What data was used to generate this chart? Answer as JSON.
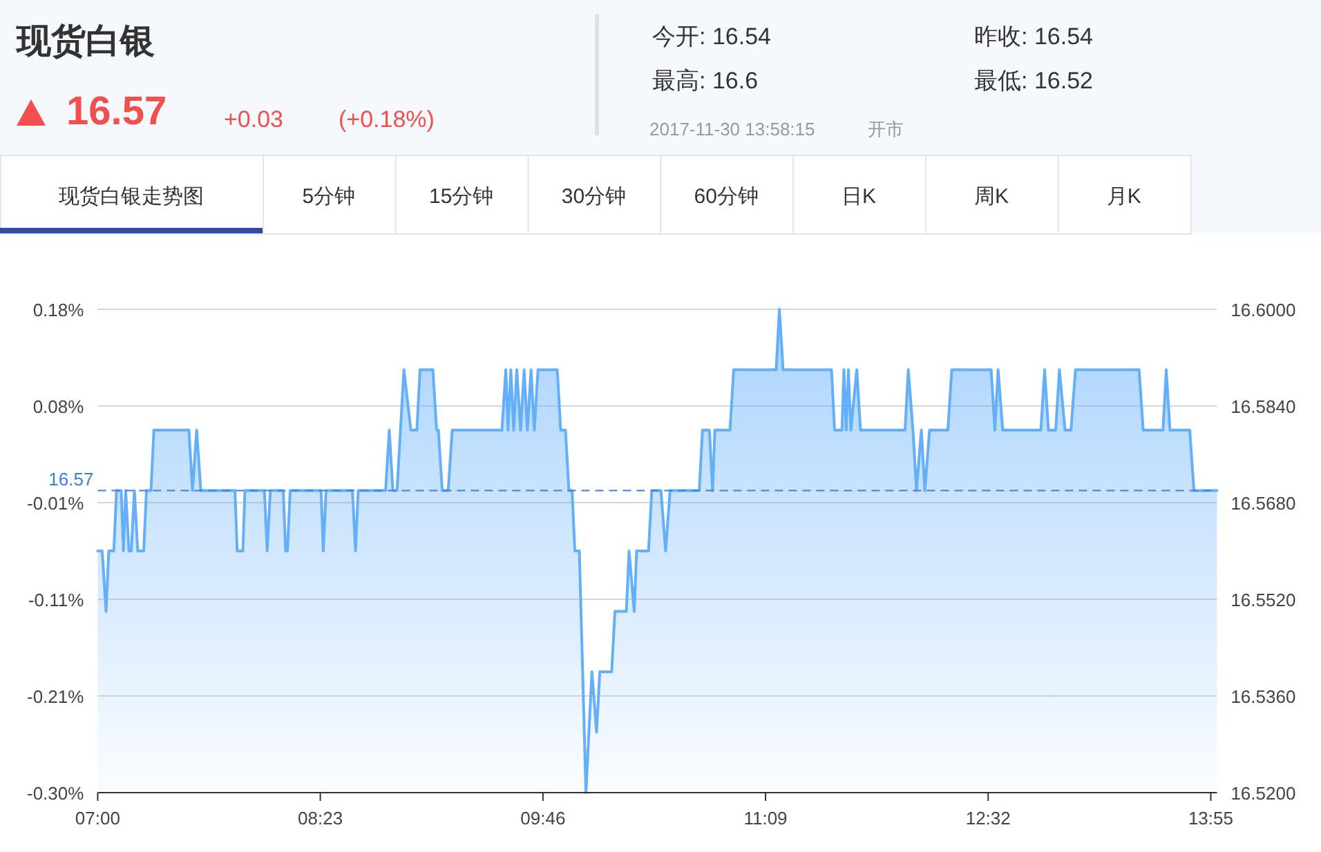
{
  "chart_data": {
    "type": "area",
    "title": "现货白银",
    "annotations": [
      "16.57",
      "+0.03",
      "(+0.18%)",
      "今开: 16.54",
      "昨收: 16.54",
      "最高: 16.6",
      "最低: 16.52",
      "2017-11-30 13:58:15",
      "开市",
      "现货白银走势图",
      "5分钟",
      "15分钟",
      "30分钟",
      "60分钟",
      "日K",
      "周K",
      "月K"
    ],
    "x": [
      7.0,
      7.028,
      7.052,
      7.069,
      7.1,
      7.117,
      7.146,
      7.16,
      7.174,
      7.194,
      7.209,
      7.228,
      7.249,
      7.286,
      7.303,
      7.331,
      7.349,
      7.567,
      7.589,
      7.615,
      7.641,
      7.853,
      7.867,
      7.902,
      7.915,
      8.036,
      8.053,
      8.073,
      8.153,
      8.168,
      8.179,
      8.196,
      8.388,
      8.402,
      8.419,
      8.583,
      8.602,
      8.619,
      8.789,
      8.812,
      8.834,
      8.86,
      8.903,
      8.946,
      8.983,
      9.003,
      9.083,
      9.106,
      9.117,
      9.141,
      9.178,
      9.203,
      9.512,
      9.536,
      9.55,
      9.567,
      9.585,
      9.604,
      9.628,
      9.65,
      9.67,
      9.693,
      9.713,
      9.736,
      9.856,
      9.877,
      9.907,
      9.928,
      9.948,
      9.965,
      9.993,
      10.034,
      10.071,
      10.1,
      10.12,
      10.194,
      10.214,
      10.285,
      10.302,
      10.334,
      10.349,
      10.423,
      10.443,
      10.5,
      10.529,
      10.557,
      10.738,
      10.758,
      10.801,
      10.821,
      10.835,
      10.929,
      10.952,
      11.216,
      11.236,
      11.259,
      11.56,
      11.579,
      11.625,
      11.637,
      11.651,
      11.665,
      11.68,
      11.717,
      11.74,
      12.017,
      12.037,
      12.066,
      12.088,
      12.118,
      12.14,
      12.169,
      12.283,
      12.307,
      12.552,
      12.575,
      12.595,
      12.624,
      12.861,
      12.884,
      12.908,
      12.953,
      12.976,
      13.011,
      13.048,
      13.076,
      13.471,
      13.497,
      13.62,
      13.64,
      13.663,
      13.786,
      13.812,
      13.955
    ],
    "series": [
      {
        "color": "#64affa",
        "axis": "y2",
        "values": [
          16.56,
          16.56,
          16.55,
          16.56,
          16.56,
          16.57,
          16.57,
          16.56,
          16.57,
          16.56,
          16.56,
          16.57,
          16.56,
          16.56,
          16.57,
          16.57,
          16.58,
          16.58,
          16.57,
          16.58,
          16.57,
          16.57,
          16.56,
          16.56,
          16.57,
          16.57,
          16.56,
          16.57,
          16.57,
          16.56,
          16.56,
          16.57,
          16.57,
          16.56,
          16.57,
          16.57,
          16.56,
          16.57,
          16.57,
          16.58,
          16.57,
          16.57,
          16.59,
          16.58,
          16.58,
          16.59,
          16.59,
          16.58,
          16.58,
          16.57,
          16.57,
          16.58,
          16.58,
          16.59,
          16.58,
          16.59,
          16.58,
          16.59,
          16.58,
          16.59,
          16.58,
          16.59,
          16.58,
          16.59,
          16.59,
          16.58,
          16.58,
          16.57,
          16.57,
          16.56,
          16.56,
          16.52,
          16.54,
          16.53,
          16.54,
          16.54,
          16.55,
          16.55,
          16.56,
          16.55,
          16.56,
          16.56,
          16.57,
          16.57,
          16.56,
          16.57,
          16.57,
          16.58,
          16.58,
          16.57,
          16.58,
          16.58,
          16.59,
          16.59,
          16.6,
          16.59,
          16.59,
          16.58,
          16.58,
          16.59,
          16.58,
          16.59,
          16.58,
          16.59,
          16.58,
          16.58,
          16.59,
          16.58,
          16.57,
          16.58,
          16.57,
          16.58,
          16.58,
          16.59,
          16.59,
          16.58,
          16.59,
          16.58,
          16.58,
          16.59,
          16.58,
          16.58,
          16.59,
          16.58,
          16.58,
          16.59,
          16.59,
          16.58,
          16.58,
          16.59,
          16.58,
          16.58,
          16.57,
          16.57
        ]
      }
    ],
    "xlim": [
      7,
      13.955
    ],
    "xticks": [
      {
        "value": 7,
        "label": "07:00"
      },
      {
        "value": 8.3833,
        "label": "08:23"
      },
      {
        "value": 9.7667,
        "label": "09:46"
      },
      {
        "value": 11.15,
        "label": "11:09"
      },
      {
        "value": 12.5333,
        "label": "12:32"
      },
      {
        "value": 13.9167,
        "label": "13:55"
      }
    ],
    "ylim": [
      -0.3018,
      0.181
    ],
    "yticks": [
      {
        "value": 0.181,
        "label": "0.18%"
      },
      {
        "value": 0.0845,
        "label": "0.08%"
      },
      {
        "value": -0.0121,
        "label": "-0.01%"
      },
      {
        "value": -0.1086,
        "label": "-0.11%"
      },
      {
        "value": -0.2052,
        "label": "-0.21%"
      },
      {
        "value": -0.3018,
        "label": "-0.30%"
      }
    ],
    "y2lim": [
      16.52,
      16.6
    ],
    "y2ticks": [
      {
        "value": 16.6,
        "label": "16.6000"
      },
      {
        "value": 16.584,
        "label": "16.5840"
      },
      {
        "value": 16.568,
        "label": "16.5680"
      },
      {
        "value": 16.552,
        "label": "16.5520"
      },
      {
        "value": 16.536,
        "label": "16.5360"
      },
      {
        "value": 16.52,
        "label": "16.5200"
      }
    ],
    "ref_lines": [
      {
        "axis": "y2",
        "value": 16.57,
        "label": "16.57",
        "color": "#3a7fe0",
        "line_style": "dashed"
      }
    ],
    "grid": "y"
  }
}
